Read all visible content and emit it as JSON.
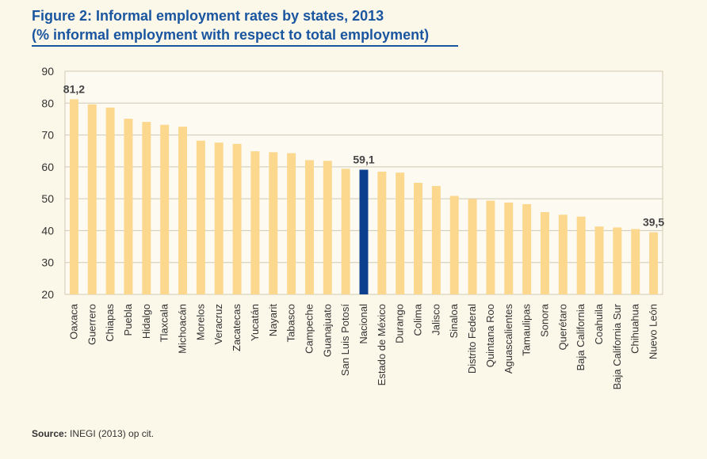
{
  "chart_data": {
    "type": "bar",
    "title": "Figure 2: Informal employment rates by states, 2013",
    "subtitle": "(% informal employment with respect to total employment)",
    "xlabel": "",
    "ylabel": "",
    "ylim": [
      20,
      90
    ],
    "yticks": [
      20,
      30,
      40,
      50,
      60,
      70,
      80,
      90
    ],
    "grid": true,
    "categories": [
      "Oaxaca",
      "Guerrero",
      "Chiapas",
      "Puebla",
      "Hidalgo",
      "Tlaxcala",
      "Michoacán",
      "Morelos",
      "Veracruz",
      "Zacatecas",
      "Yucatán",
      "Nayarit",
      "Tabasco",
      "Campeche",
      "Guanajuato",
      "San Luis Potosí",
      "Nacional",
      "Estado de México",
      "Durango",
      "Colima",
      "Jalisco",
      "Sinaloa",
      "Distrito Federal",
      "Quintana Roo",
      "Aguascalientes",
      "Tamaulipas",
      "Sonora",
      "Querétaro",
      "Baja California",
      "Coahuila",
      "Baja California Sur",
      "Chihuahua",
      "Nuevo León"
    ],
    "values": [
      81.2,
      79.6,
      78.6,
      75.1,
      74.1,
      73.2,
      72.6,
      68.2,
      67.6,
      67.2,
      64.9,
      64.6,
      64.3,
      62.1,
      61.9,
      59.4,
      59.1,
      58.5,
      58.2,
      55.0,
      54.0,
      50.9,
      49.9,
      49.4,
      48.8,
      48.3,
      45.8,
      45.0,
      44.4,
      41.3,
      41.0,
      40.5,
      39.5
    ],
    "highlight_index": 16,
    "data_labels": [
      {
        "index": 0,
        "text": "81,2"
      },
      {
        "index": 16,
        "text": "59,1"
      },
      {
        "index": 32,
        "text": "39,5"
      }
    ],
    "colors": {
      "bar": "#fcd88f",
      "highlight": "#0d3f8f",
      "grid": "#cfc8b2",
      "axis_text": "#333333",
      "label": "#444444"
    }
  },
  "source": {
    "label": "Source:",
    "text": " INEGI (2013) op cit."
  }
}
